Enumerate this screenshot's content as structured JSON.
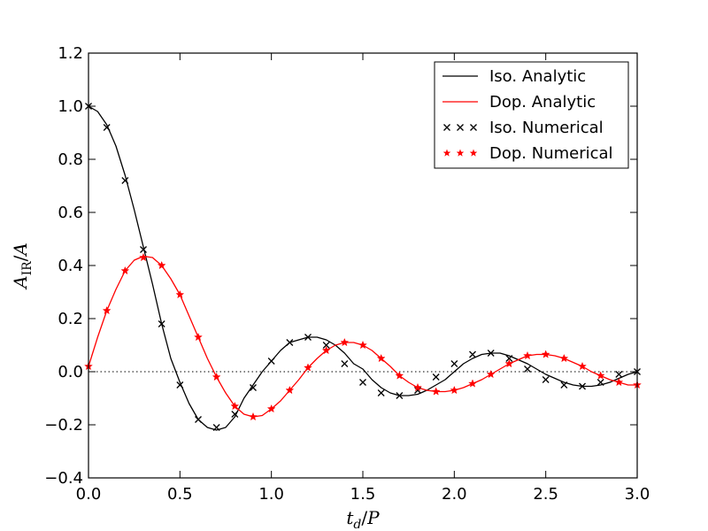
{
  "chart_data": {
    "type": "line",
    "title": "",
    "xlabel": "t_d/P",
    "ylabel": "A_IR/A",
    "xlim": [
      0.0,
      3.0
    ],
    "ylim": [
      -0.4,
      1.2
    ],
    "x_ticks": [
      0.0,
      0.5,
      1.0,
      1.5,
      2.0,
      2.5,
      3.0
    ],
    "x_tick_labels": [
      "0.0",
      "0.5",
      "1.0",
      "1.5",
      "2.0",
      "2.5",
      "3.0"
    ],
    "y_ticks": [
      -0.4,
      -0.2,
      0.0,
      0.2,
      0.4,
      0.6,
      0.8,
      1.0,
      1.2
    ],
    "y_tick_labels": [
      "−0.4",
      "−0.2",
      "0.0",
      "0.2",
      "0.4",
      "0.6",
      "0.8",
      "1.0",
      "1.2"
    ],
    "grid": false,
    "reference_line": {
      "y": 0.0,
      "style": "dotted"
    },
    "legend": {
      "placement": "top-right",
      "entries": [
        "Iso. Analytic",
        "Dop. Analytic",
        "Iso. Numerical",
        "Dop. Numerical"
      ]
    },
    "colors": {
      "iso": "#000000",
      "dop": "#ff0000"
    },
    "series": [
      {
        "name": "Iso. Analytic",
        "kind": "line",
        "color": "#000000",
        "x": [
          0.0,
          0.05,
          0.1,
          0.15,
          0.2,
          0.25,
          0.3,
          0.35,
          0.4,
          0.45,
          0.5,
          0.55,
          0.6,
          0.65,
          0.7,
          0.75,
          0.8,
          0.85,
          0.9,
          0.95,
          1.0,
          1.05,
          1.1,
          1.15,
          1.2,
          1.25,
          1.3,
          1.35,
          1.4,
          1.45,
          1.5,
          1.55,
          1.6,
          1.65,
          1.7,
          1.75,
          1.8,
          1.85,
          1.9,
          1.95,
          2.0,
          2.05,
          2.1,
          2.15,
          2.2,
          2.25,
          2.3,
          2.35,
          2.4,
          2.45,
          2.5,
          2.55,
          2.6,
          2.65,
          2.7,
          2.75,
          2.8,
          2.85,
          2.9,
          2.95,
          3.0
        ],
        "y": [
          1.0,
          0.98,
          0.93,
          0.85,
          0.74,
          0.61,
          0.47,
          0.33,
          0.18,
          0.05,
          -0.04,
          -0.12,
          -0.18,
          -0.21,
          -0.22,
          -0.21,
          -0.17,
          -0.1,
          -0.05,
          0.0,
          0.04,
          0.08,
          0.11,
          0.12,
          0.13,
          0.13,
          0.12,
          0.1,
          0.07,
          0.03,
          0.01,
          -0.03,
          -0.06,
          -0.08,
          -0.09,
          -0.09,
          -0.085,
          -0.07,
          -0.05,
          -0.03,
          0.0,
          0.03,
          0.05,
          0.065,
          0.07,
          0.07,
          0.06,
          0.045,
          0.03,
          0.01,
          -0.01,
          -0.025,
          -0.04,
          -0.05,
          -0.055,
          -0.055,
          -0.05,
          -0.04,
          -0.025,
          -0.01,
          0.0
        ]
      },
      {
        "name": "Dop. Analytic",
        "kind": "line",
        "color": "#ff0000",
        "x": [
          0.0,
          0.05,
          0.1,
          0.15,
          0.2,
          0.25,
          0.3,
          0.35,
          0.4,
          0.45,
          0.5,
          0.55,
          0.6,
          0.65,
          0.7,
          0.75,
          0.8,
          0.85,
          0.9,
          0.95,
          1.0,
          1.05,
          1.1,
          1.15,
          1.2,
          1.25,
          1.3,
          1.35,
          1.4,
          1.45,
          1.5,
          1.55,
          1.6,
          1.65,
          1.7,
          1.75,
          1.8,
          1.85,
          1.9,
          1.95,
          2.0,
          2.05,
          2.1,
          2.15,
          2.2,
          2.25,
          2.3,
          2.35,
          2.4,
          2.45,
          2.5,
          2.55,
          2.6,
          2.65,
          2.7,
          2.75,
          2.8,
          2.85,
          2.9,
          2.95,
          3.0
        ],
        "y": [
          0.02,
          0.13,
          0.23,
          0.31,
          0.38,
          0.42,
          0.435,
          0.43,
          0.4,
          0.35,
          0.29,
          0.21,
          0.13,
          0.05,
          -0.02,
          -0.08,
          -0.13,
          -0.16,
          -0.17,
          -0.165,
          -0.14,
          -0.11,
          -0.07,
          -0.03,
          0.015,
          0.05,
          0.08,
          0.1,
          0.11,
          0.11,
          0.1,
          0.08,
          0.05,
          0.02,
          -0.015,
          -0.04,
          -0.06,
          -0.07,
          -0.075,
          -0.075,
          -0.07,
          -0.06,
          -0.045,
          -0.03,
          -0.01,
          0.01,
          0.03,
          0.045,
          0.06,
          0.065,
          0.065,
          0.06,
          0.05,
          0.035,
          0.02,
          0.0,
          -0.015,
          -0.03,
          -0.04,
          -0.05,
          -0.05
        ]
      },
      {
        "name": "Iso. Numerical",
        "kind": "markers",
        "marker": "x",
        "color": "#000000",
        "x": [
          0.0,
          0.1,
          0.2,
          0.3,
          0.4,
          0.5,
          0.6,
          0.7,
          0.8,
          0.9,
          1.0,
          1.1,
          1.2,
          1.3,
          1.4,
          1.5,
          1.6,
          1.7,
          1.8,
          1.9,
          2.0,
          2.1,
          2.2,
          2.3,
          2.4,
          2.5,
          2.6,
          2.7,
          2.8,
          2.9,
          3.0
        ],
        "y": [
          1.0,
          0.92,
          0.72,
          0.46,
          0.18,
          -0.05,
          -0.18,
          -0.21,
          -0.16,
          -0.06,
          0.04,
          0.11,
          0.13,
          0.1,
          0.03,
          -0.04,
          -0.08,
          -0.09,
          -0.07,
          -0.02,
          0.03,
          0.065,
          0.07,
          0.05,
          0.01,
          -0.03,
          -0.05,
          -0.055,
          -0.04,
          -0.01,
          0.0
        ]
      },
      {
        "name": "Dop. Numerical",
        "kind": "markers",
        "marker": "star",
        "color": "#ff0000",
        "x": [
          0.0,
          0.1,
          0.2,
          0.3,
          0.4,
          0.5,
          0.6,
          0.7,
          0.8,
          0.9,
          1.0,
          1.1,
          1.2,
          1.3,
          1.4,
          1.5,
          1.6,
          1.7,
          1.8,
          1.9,
          2.0,
          2.1,
          2.2,
          2.3,
          2.4,
          2.5,
          2.6,
          2.7,
          2.8,
          2.9,
          3.0
        ],
        "y": [
          0.02,
          0.23,
          0.38,
          0.43,
          0.4,
          0.29,
          0.13,
          -0.02,
          -0.13,
          -0.17,
          -0.14,
          -0.07,
          0.015,
          0.08,
          0.11,
          0.1,
          0.05,
          -0.015,
          -0.06,
          -0.075,
          -0.07,
          -0.045,
          -0.01,
          0.03,
          0.06,
          0.065,
          0.05,
          0.02,
          -0.015,
          -0.04,
          -0.05
        ]
      }
    ]
  }
}
